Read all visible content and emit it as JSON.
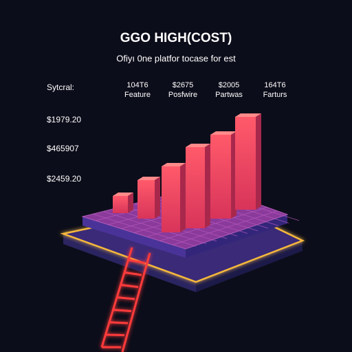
{
  "header": {
    "title": "GGO HIGH(COST)",
    "subtitle": "Ofiyı 0ne platfor tocase for est"
  },
  "table": {
    "label": "Sytcral:",
    "columns": [
      [
        "104T6",
        "Feature"
      ],
      [
        "$2675",
        "Posfwire"
      ],
      [
        "$2005",
        "Partwas"
      ],
      [
        "164T6",
        "Farturs"
      ]
    ],
    "rows": [
      "$1979.20",
      "$465907",
      "$2459.20"
    ]
  }
}
